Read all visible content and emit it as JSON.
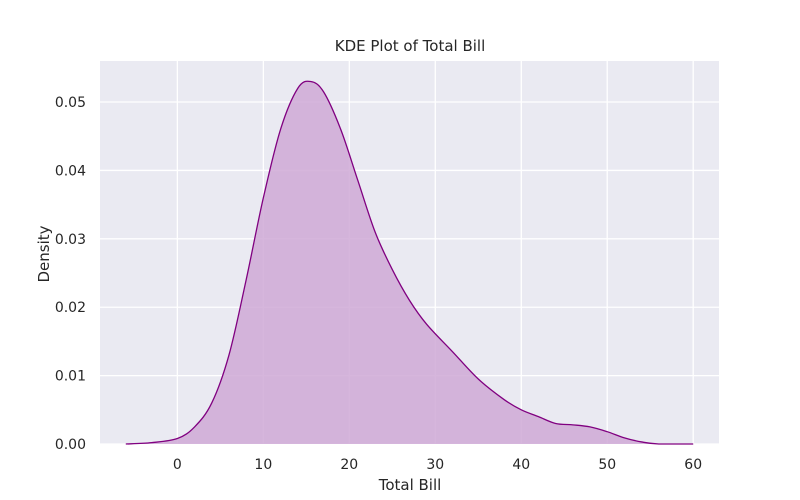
{
  "chart_data": {
    "type": "area",
    "title": "KDE Plot of Total Bill",
    "xlabel": "Total Bill",
    "ylabel": "Density",
    "xlim": [
      -9,
      63
    ],
    "ylim": [
      0,
      0.056
    ],
    "xticks": [
      0,
      10,
      20,
      30,
      40,
      50,
      60
    ],
    "yticks": [
      0.0,
      0.01,
      0.02,
      0.03,
      0.04,
      0.05
    ],
    "xtick_labels": [
      "0",
      "10",
      "20",
      "30",
      "40",
      "50",
      "60"
    ],
    "ytick_labels": [
      "0.00",
      "0.01",
      "0.02",
      "0.03",
      "0.04",
      "0.05"
    ],
    "grid": true,
    "colors": {
      "background": "#eaeaf2",
      "grid": "#ffffff",
      "line": "#800080",
      "fill": "#cfa9d6"
    },
    "series": [
      {
        "x": [
          -6,
          -3,
          0,
          2,
          4,
          6,
          8,
          10,
          12,
          14,
          15.5,
          17,
          19,
          21,
          23,
          25,
          27,
          29,
          32,
          35,
          38,
          40,
          42,
          44,
          46,
          48,
          50,
          52,
          54,
          56,
          60
        ],
        "y": [
          0.0,
          0.0002,
          0.0008,
          0.0025,
          0.006,
          0.013,
          0.024,
          0.036,
          0.046,
          0.052,
          0.053,
          0.0515,
          0.046,
          0.0385,
          0.031,
          0.0255,
          0.021,
          0.0175,
          0.0135,
          0.0095,
          0.0065,
          0.005,
          0.004,
          0.003,
          0.0028,
          0.0025,
          0.0018,
          0.0009,
          0.0003,
          0.0,
          0.0
        ]
      }
    ]
  }
}
